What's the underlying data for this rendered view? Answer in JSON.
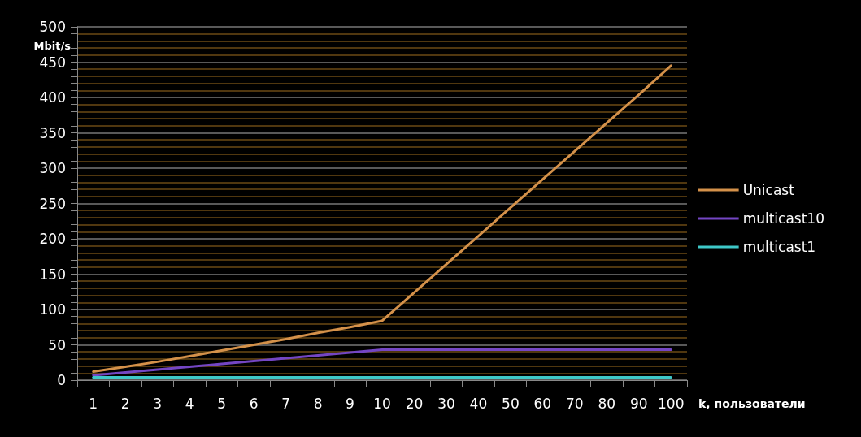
{
  "chart_data": {
    "type": "line",
    "xlabel": "k, пользователи",
    "ylabel": "Mbit/s",
    "categories": [
      "1",
      "2",
      "3",
      "4",
      "5",
      "6",
      "7",
      "8",
      "9",
      "10",
      "20",
      "30",
      "40",
      "50",
      "60",
      "70",
      "80",
      "90",
      "100"
    ],
    "series": [
      {
        "name": "Unicast",
        "color": "#d4914a",
        "values": [
          12,
          19,
          26,
          34,
          42,
          50,
          58,
          67,
          75,
          84,
          124,
          164,
          204,
          244,
          284,
          324,
          364,
          404,
          445
        ]
      },
      {
        "name": "multicast10",
        "color": "#7446c4",
        "values": [
          7,
          11,
          15,
          19,
          23,
          27,
          31,
          35,
          39,
          43,
          43,
          43,
          43,
          43,
          43,
          43,
          43,
          43,
          43
        ]
      },
      {
        "name": "multicast1",
        "color": "#3ec8c8",
        "values": [
          4,
          4,
          4,
          4,
          4,
          4,
          4,
          4,
          4,
          4,
          4,
          4,
          4,
          4,
          4,
          4,
          4,
          4,
          4
        ]
      }
    ],
    "ylim": [
      0,
      500
    ],
    "yticks": [
      0,
      {
        "value": 10,
        "label": null
      },
      {
        "value": 20,
        "label": null
      },
      {
        "value": 30,
        "label": null
      },
      {
        "value": 40,
        "label": null
      },
      50,
      {
        "value": 60,
        "label": null
      },
      {
        "value": 70,
        "label": null
      },
      {
        "value": 80,
        "label": null
      },
      {
        "value": 90,
        "label": null
      },
      100,
      {
        "value": 110,
        "label": null
      },
      {
        "value": 120,
        "label": null
      },
      {
        "value": 130,
        "label": null
      },
      {
        "value": 140,
        "label": null
      },
      150,
      {
        "value": 160,
        "label": null
      },
      {
        "value": 170,
        "label": null
      },
      {
        "value": 180,
        "label": null
      },
      {
        "value": 190,
        "label": null
      },
      200,
      {
        "value": 210,
        "label": null
      },
      {
        "value": 220,
        "label": null
      },
      {
        "value": 230,
        "label": null
      },
      {
        "value": 240,
        "label": null
      },
      250,
      {
        "value": 260,
        "label": null
      },
      {
        "value": 270,
        "label": null
      },
      {
        "value": 280,
        "label": null
      },
      {
        "value": 290,
        "label": null
      },
      300,
      {
        "value": 310,
        "label": null
      },
      {
        "value": 320,
        "label": null
      },
      {
        "value": 330,
        "label": null
      },
      {
        "value": 340,
        "label": null
      },
      350,
      {
        "value": 360,
        "label": null
      },
      {
        "value": 370,
        "label": null
      },
      {
        "value": 380,
        "label": null
      },
      {
        "value": 390,
        "label": null
      },
      400,
      {
        "value": 410,
        "label": null
      },
      {
        "value": 420,
        "label": null
      },
      {
        "value": 430,
        "label": null
      },
      {
        "value": 440,
        "label": null
      },
      450,
      {
        "value": 460,
        "label": null
      },
      {
        "value": 470,
        "label": null
      },
      {
        "value": 480,
        "label": null
      },
      {
        "value": 490,
        "label": null
      },
      500
    ],
    "grid": "y",
    "legend": "right",
    "marker": "none",
    "line_style": "solid"
  }
}
